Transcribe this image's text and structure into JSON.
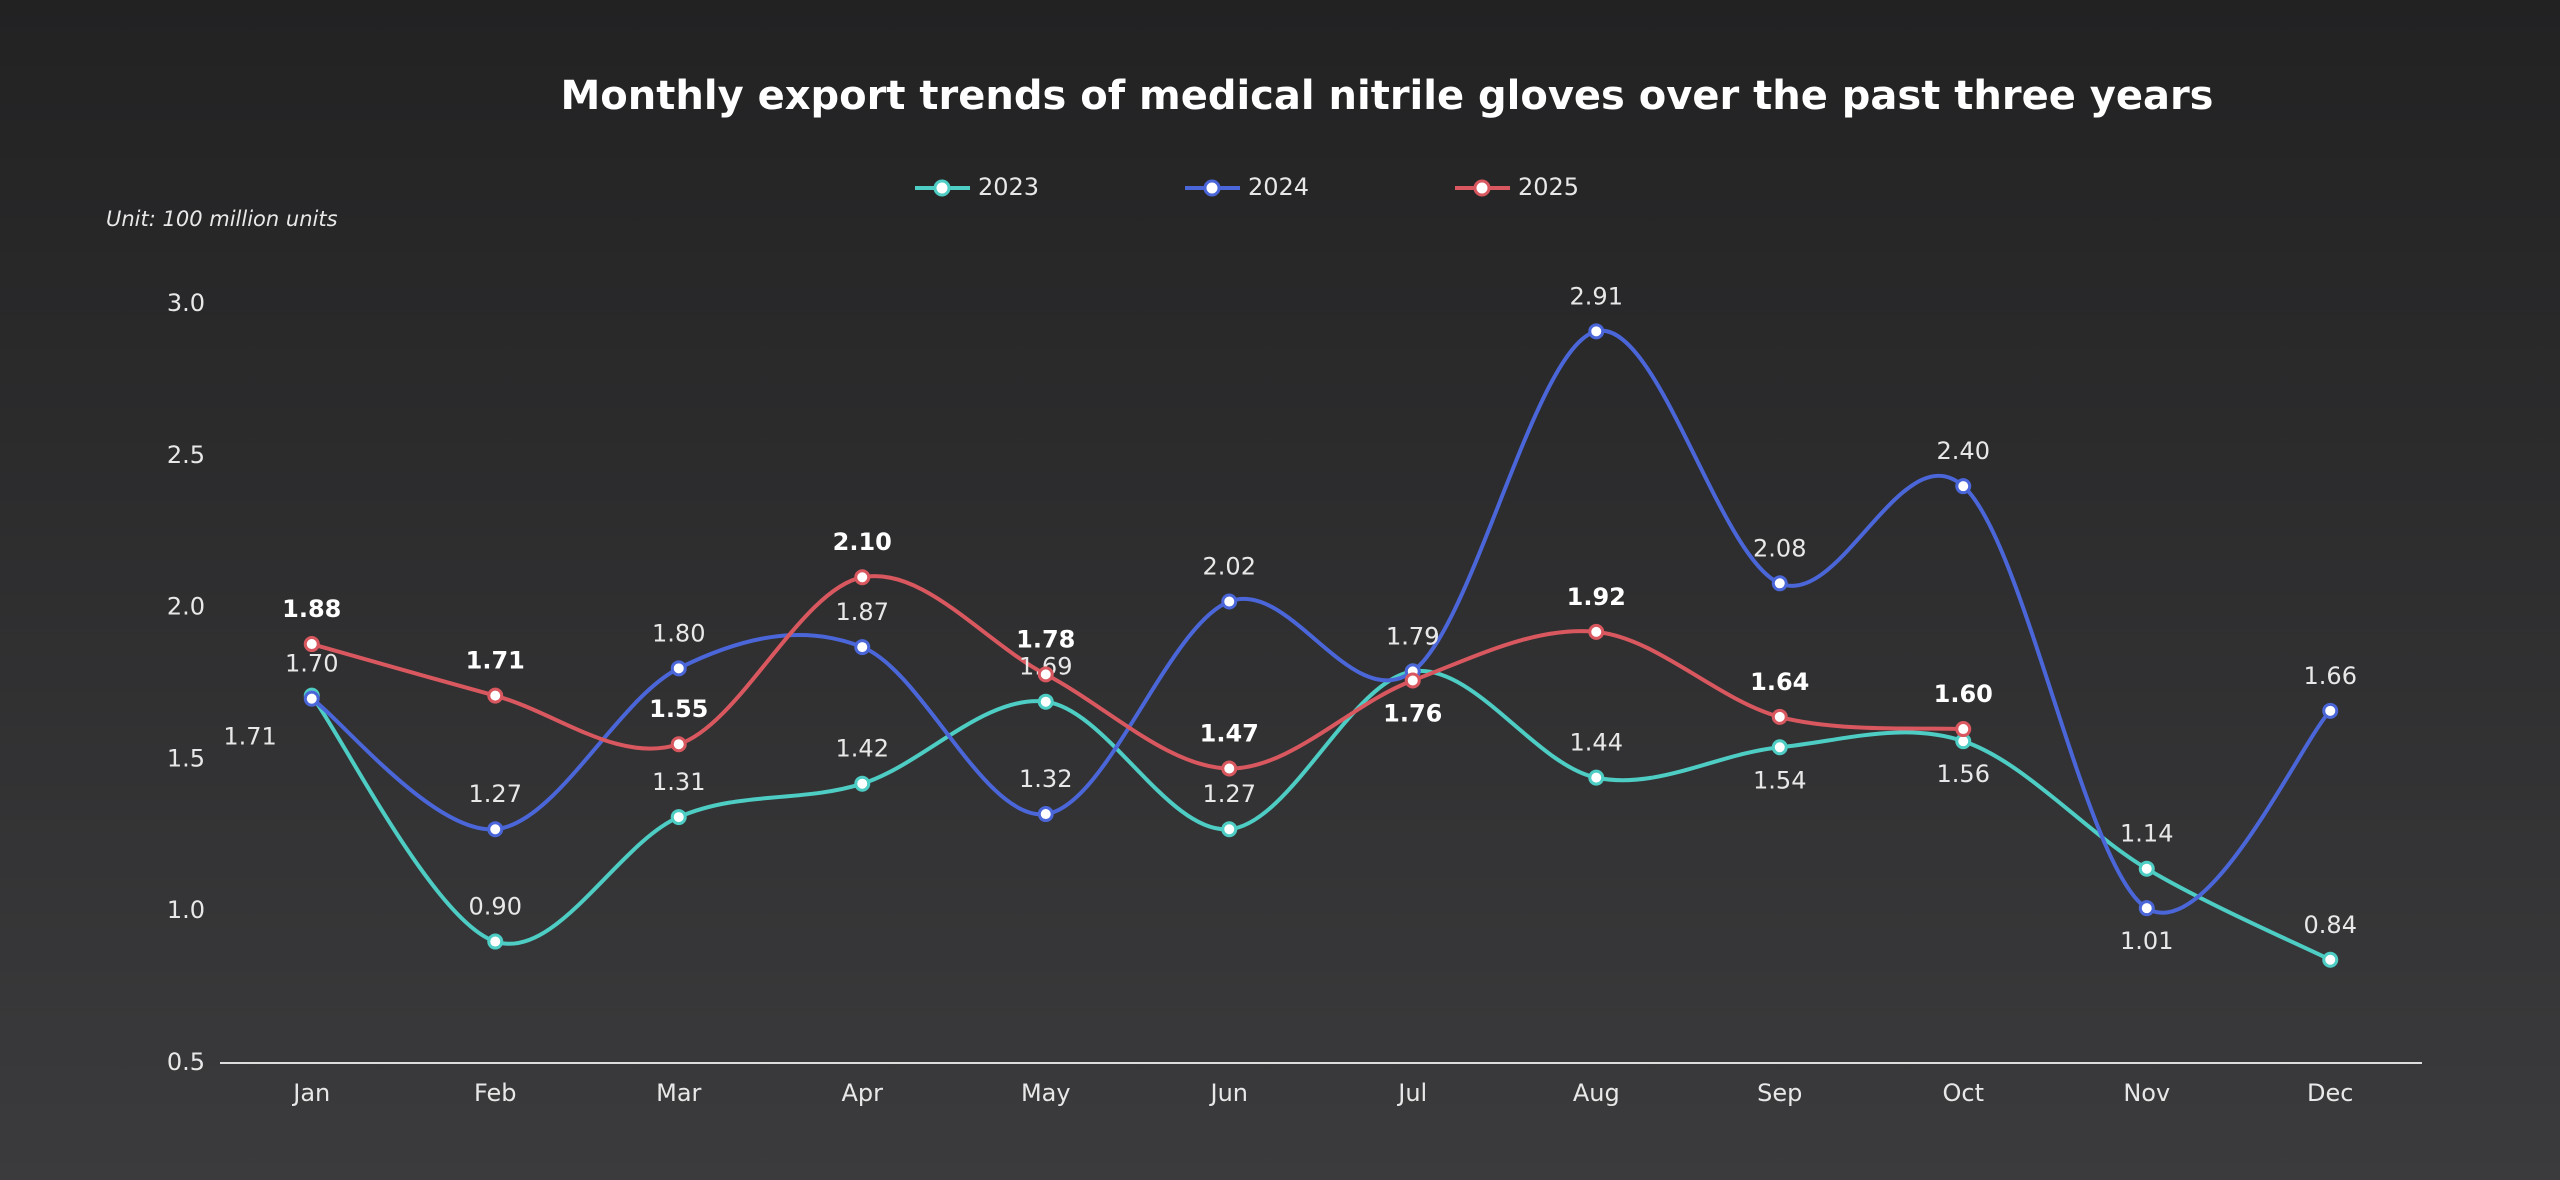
{
  "chart_data": {
    "type": "line",
    "title": "Monthly export trends of medical nitrile gloves over the past three years",
    "unit_label": "Unit: 100 million units",
    "categories": [
      "Jan",
      "Feb",
      "Mar",
      "Apr",
      "May",
      "Jun",
      "Jul",
      "Aug",
      "Sep",
      "Oct",
      "Nov",
      "Dec"
    ],
    "series": [
      {
        "name": "2023",
        "color": "#4ecdc4",
        "values": [
          1.71,
          0.9,
          1.31,
          1.42,
          1.69,
          1.27,
          1.79,
          1.44,
          1.54,
          1.56,
          1.14,
          0.84
        ]
      },
      {
        "name": "2024",
        "color": "#4a66d8",
        "values": [
          1.7,
          1.27,
          1.8,
          1.87,
          1.32,
          2.02,
          1.79,
          2.91,
          2.08,
          2.4,
          1.01,
          1.66
        ]
      },
      {
        "name": "2025",
        "color": "#d9585f",
        "values": [
          1.88,
          1.71,
          1.55,
          2.1,
          1.78,
          1.47,
          1.76,
          1.92,
          1.64,
          1.6,
          null,
          null
        ]
      }
    ],
    "ylim": [
      0.5,
      3.0
    ],
    "yticks": [
      {
        "value": 0.5,
        "label": "0.5"
      },
      {
        "value": 1.0,
        "label": "1.0"
      },
      {
        "value": 1.5,
        "label": "1.5"
      },
      {
        "value": 2.0,
        "label": "2.0"
      },
      {
        "value": 2.5,
        "label": "2.5"
      },
      {
        "value": 3.0,
        "label": "3.0"
      }
    ],
    "grid": false
  }
}
